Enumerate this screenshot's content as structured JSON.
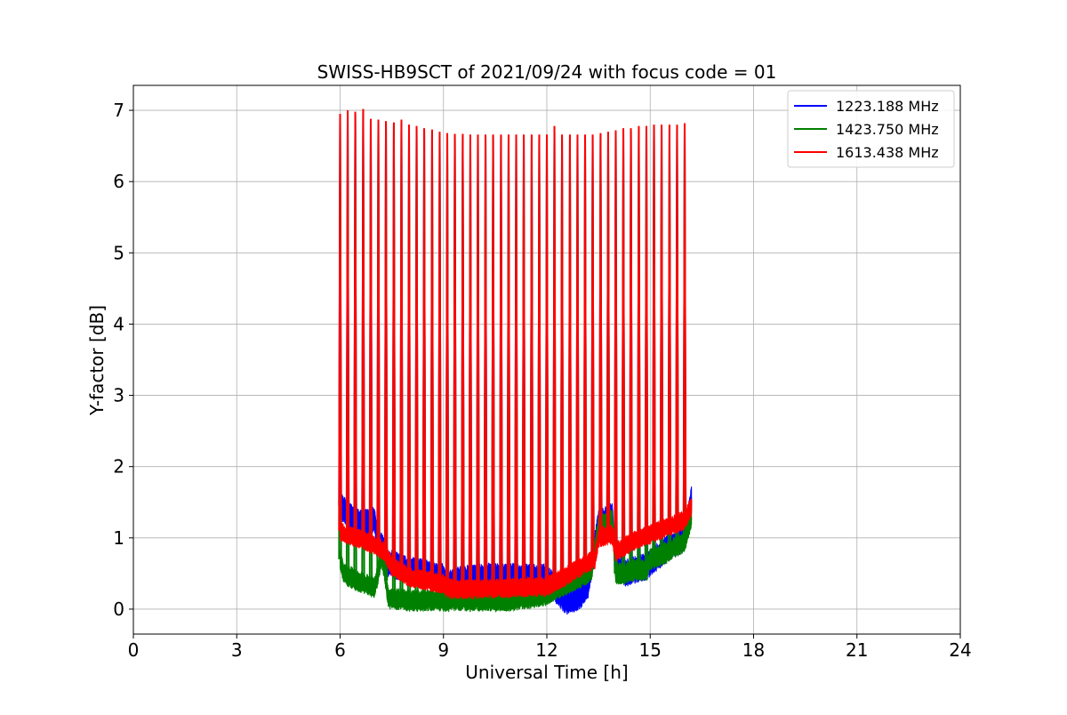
{
  "chart_data": {
    "type": "line",
    "title": "SWISS-HB9SCT of 2021/09/24 with focus code = 01",
    "xlabel": "Universal Time [h]",
    "ylabel": "Y-factor [dB]",
    "xlim": [
      0,
      24
    ],
    "ylim": [
      -0.35,
      7.35
    ],
    "xticks": [
      0,
      3,
      6,
      9,
      12,
      15,
      18,
      21,
      24
    ],
    "yticks": [
      0,
      1,
      2,
      3,
      4,
      5,
      6,
      7
    ],
    "grid": true,
    "legend_position": "top-right",
    "series": [
      {
        "name": "1223.188 MHz",
        "color": "#0000ff",
        "x": [
          6.0,
          6.1,
          6.3,
          6.6,
          7.0,
          7.1,
          7.2,
          7.4,
          8.0,
          8.5,
          9.0,
          9.1,
          9.3,
          10.0,
          11.0,
          12.0,
          12.3,
          12.6,
          13.0,
          13.2,
          13.5,
          13.9,
          14.0,
          14.3,
          14.5,
          14.9,
          15.0,
          15.5,
          16.0,
          16.2
        ],
        "values": [
          1.45,
          1.4,
          1.3,
          1.2,
          1.25,
          0.95,
          0.9,
          0.65,
          0.55,
          0.5,
          0.45,
          0.3,
          0.4,
          0.45,
          0.45,
          0.45,
          0.25,
          0.1,
          0.2,
          0.35,
          1.2,
          1.3,
          0.6,
          0.5,
          0.55,
          0.6,
          0.65,
          0.85,
          1.0,
          1.55
        ]
      },
      {
        "name": "1423.750 MHz",
        "color": "#008000",
        "x": [
          6.0,
          6.1,
          6.5,
          7.0,
          7.1,
          7.2,
          7.3,
          7.4,
          8.0,
          8.5,
          9.0,
          9.1,
          9.3,
          10.0,
          11.0,
          12.0,
          12.3,
          12.6,
          13.0,
          13.3,
          13.5,
          13.9,
          14.0,
          14.3,
          14.5,
          14.9,
          15.0,
          15.5,
          16.0,
          16.2
        ],
        "values": [
          0.7,
          0.5,
          0.4,
          0.3,
          0.5,
          0.75,
          0.5,
          0.15,
          0.12,
          0.12,
          0.12,
          0.1,
          0.12,
          0.12,
          0.12,
          0.2,
          0.3,
          0.35,
          0.45,
          0.55,
          1.15,
          1.25,
          0.5,
          0.5,
          0.55,
          0.55,
          0.7,
          0.8,
          0.95,
          1.3
        ]
      },
      {
        "name": "1613.438 MHz",
        "color": "#ff0000",
        "x": [
          6.0,
          6.1,
          6.5,
          7.0,
          7.3,
          7.5,
          8.0,
          8.5,
          9.0,
          9.1,
          9.3,
          10.0,
          11.0,
          12.0,
          12.5,
          13.0,
          13.4,
          13.5,
          13.9,
          14.0,
          14.5,
          15.0,
          15.5,
          16.0,
          16.2
        ],
        "values": [
          1.1,
          1.05,
          1.0,
          0.9,
          0.8,
          0.6,
          0.45,
          0.4,
          0.35,
          0.3,
          0.28,
          0.28,
          0.3,
          0.32,
          0.45,
          0.6,
          0.7,
          1.0,
          1.05,
          0.8,
          0.95,
          1.05,
          1.15,
          1.25,
          1.45
        ]
      }
    ],
    "calibration_spikes": {
      "x": [
        6.0,
        6.22,
        6.44,
        6.67,
        6.89,
        7.11,
        7.33,
        7.56,
        7.78,
        8.0,
        8.22,
        8.44,
        8.67,
        8.89,
        9.11,
        9.33,
        9.56,
        9.78,
        10.0,
        10.22,
        10.44,
        10.67,
        10.89,
        11.11,
        11.33,
        11.56,
        11.78,
        12.0,
        12.22,
        12.44,
        12.67,
        12.89,
        13.11,
        13.33,
        13.56,
        13.78,
        14.0,
        14.22,
        14.44,
        14.67,
        14.89,
        15.11,
        15.33,
        15.56,
        15.78,
        16.0
      ],
      "values": [
        6.95,
        7.0,
        6.98,
        7.02,
        6.88,
        6.87,
        6.85,
        6.83,
        6.87,
        6.8,
        6.78,
        6.75,
        6.73,
        6.7,
        6.68,
        6.67,
        6.67,
        6.66,
        6.66,
        6.66,
        6.66,
        6.66,
        6.66,
        6.66,
        6.66,
        6.66,
        6.66,
        6.66,
        6.78,
        6.66,
        6.66,
        6.66,
        6.66,
        6.66,
        6.68,
        6.7,
        6.72,
        6.75,
        6.75,
        6.78,
        6.78,
        6.8,
        6.8,
        6.8,
        6.8,
        6.82
      ]
    }
  }
}
